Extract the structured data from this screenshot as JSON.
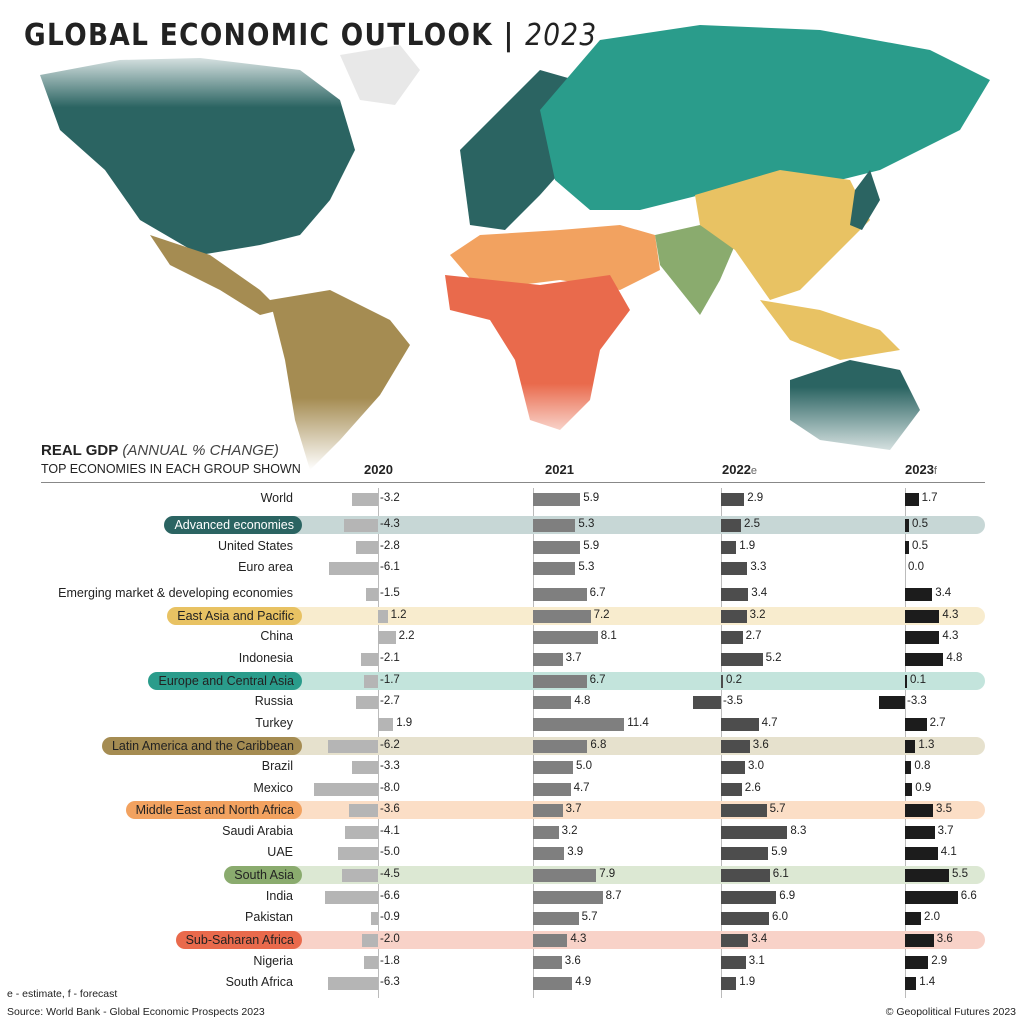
{
  "title": {
    "main": "GLOBAL ECONOMIC OUTLOOK",
    "sep": " | ",
    "year": "2023"
  },
  "chart_data": {
    "type": "bar",
    "title": "REAL GDP",
    "subtitle": "(ANNUAL % CHANGE)",
    "note": "TOP ECONOMIES IN EACH GROUP SHOWN",
    "columns": [
      {
        "year": "2020",
        "suffix": ""
      },
      {
        "year": "2021",
        "suffix": ""
      },
      {
        "year": "2022",
        "suffix": "e"
      },
      {
        "year": "2023",
        "suffix": "f"
      }
    ],
    "rows": [
      {
        "name": "World",
        "group": null,
        "values": [
          -3.2,
          5.9,
          2.9,
          1.7
        ]
      },
      {
        "name": "Advanced economies",
        "group": "adv",
        "values": [
          -4.3,
          5.3,
          2.5,
          0.5
        ]
      },
      {
        "name": "United States",
        "group": null,
        "values": [
          -2.8,
          5.9,
          1.9,
          0.5
        ]
      },
      {
        "name": "Euro area",
        "group": null,
        "values": [
          -6.1,
          5.3,
          3.3,
          0.0
        ]
      },
      {
        "name": "Emerging market & developing economies",
        "group": null,
        "values": [
          -1.5,
          6.7,
          3.4,
          3.4
        ]
      },
      {
        "name": "East Asia and Pacific",
        "group": "eap",
        "values": [
          1.2,
          7.2,
          3.2,
          4.3
        ]
      },
      {
        "name": "China",
        "group": null,
        "values": [
          2.2,
          8.1,
          2.7,
          4.3
        ]
      },
      {
        "name": "Indonesia",
        "group": null,
        "values": [
          -2.1,
          3.7,
          5.2,
          4.8
        ]
      },
      {
        "name": "Europe and Central Asia",
        "group": "eca",
        "values": [
          -1.7,
          6.7,
          0.2,
          0.1
        ]
      },
      {
        "name": "Russia",
        "group": null,
        "values": [
          -2.7,
          4.8,
          -3.5,
          -3.3
        ]
      },
      {
        "name": "Turkey",
        "group": null,
        "values": [
          1.9,
          11.4,
          4.7,
          2.7
        ]
      },
      {
        "name": "Latin America and the Caribbean",
        "group": "lac",
        "values": [
          -6.2,
          6.8,
          3.6,
          1.3
        ]
      },
      {
        "name": "Brazil",
        "group": null,
        "values": [
          -3.3,
          5.0,
          3.0,
          0.8
        ]
      },
      {
        "name": "Mexico",
        "group": null,
        "values": [
          -8.0,
          4.7,
          2.6,
          0.9
        ]
      },
      {
        "name": "Middle East and North Africa",
        "group": "mena",
        "values": [
          -3.6,
          3.7,
          5.7,
          3.5
        ]
      },
      {
        "name": "Saudi Arabia",
        "group": null,
        "values": [
          -4.1,
          3.2,
          8.3,
          3.7
        ]
      },
      {
        "name": "UAE",
        "group": null,
        "values": [
          -5.0,
          3.9,
          5.9,
          4.1
        ]
      },
      {
        "name": "South Asia",
        "group": "sa",
        "values": [
          -4.5,
          7.9,
          6.1,
          5.5
        ]
      },
      {
        "name": "India",
        "group": null,
        "values": [
          -6.6,
          8.7,
          6.9,
          6.6
        ]
      },
      {
        "name": "Pakistan",
        "group": null,
        "values": [
          -0.9,
          5.7,
          6.0,
          2.0
        ]
      },
      {
        "name": "Sub-Saharan Africa",
        "group": "ssa",
        "values": [
          -2.0,
          4.3,
          3.4,
          3.6
        ]
      },
      {
        "name": "Nigeria",
        "group": null,
        "values": [
          -1.8,
          3.6,
          3.1,
          2.9
        ]
      },
      {
        "name": "South Africa",
        "group": null,
        "values": [
          -6.3,
          4.9,
          1.9,
          1.4
        ]
      }
    ],
    "group_colors": {
      "adv": {
        "pill": "#2b6462",
        "band": "#c7d7d6",
        "text": "#ffffff"
      },
      "eap": {
        "pill": "#e8c263",
        "band": "#f8ecce",
        "text": "#222222"
      },
      "eca": {
        "pill": "#2a9c8b",
        "band": "#c3e4dc",
        "text": "#222222"
      },
      "lac": {
        "pill": "#a58c52",
        "band": "#e6e1cd",
        "text": "#222222"
      },
      "mena": {
        "pill": "#f2a260",
        "band": "#fbdec6",
        "text": "#222222"
      },
      "sa": {
        "pill": "#8aab6e",
        "band": "#dce8d3",
        "text": "#222222"
      },
      "ssa": {
        "pill": "#e96a4c",
        "band": "#f8d2c8",
        "text": "#222222"
      }
    },
    "bar_colors": [
      "#b5b5b5",
      "#7f7f7f",
      "#4d4d4d",
      "#1c1c1c"
    ]
  },
  "footer": {
    "legend": "e - estimate, f - forecast",
    "source": "Source: World Bank - Global Economic Prospects 2023",
    "copyright": "© Geopolitical Futures 2023"
  }
}
